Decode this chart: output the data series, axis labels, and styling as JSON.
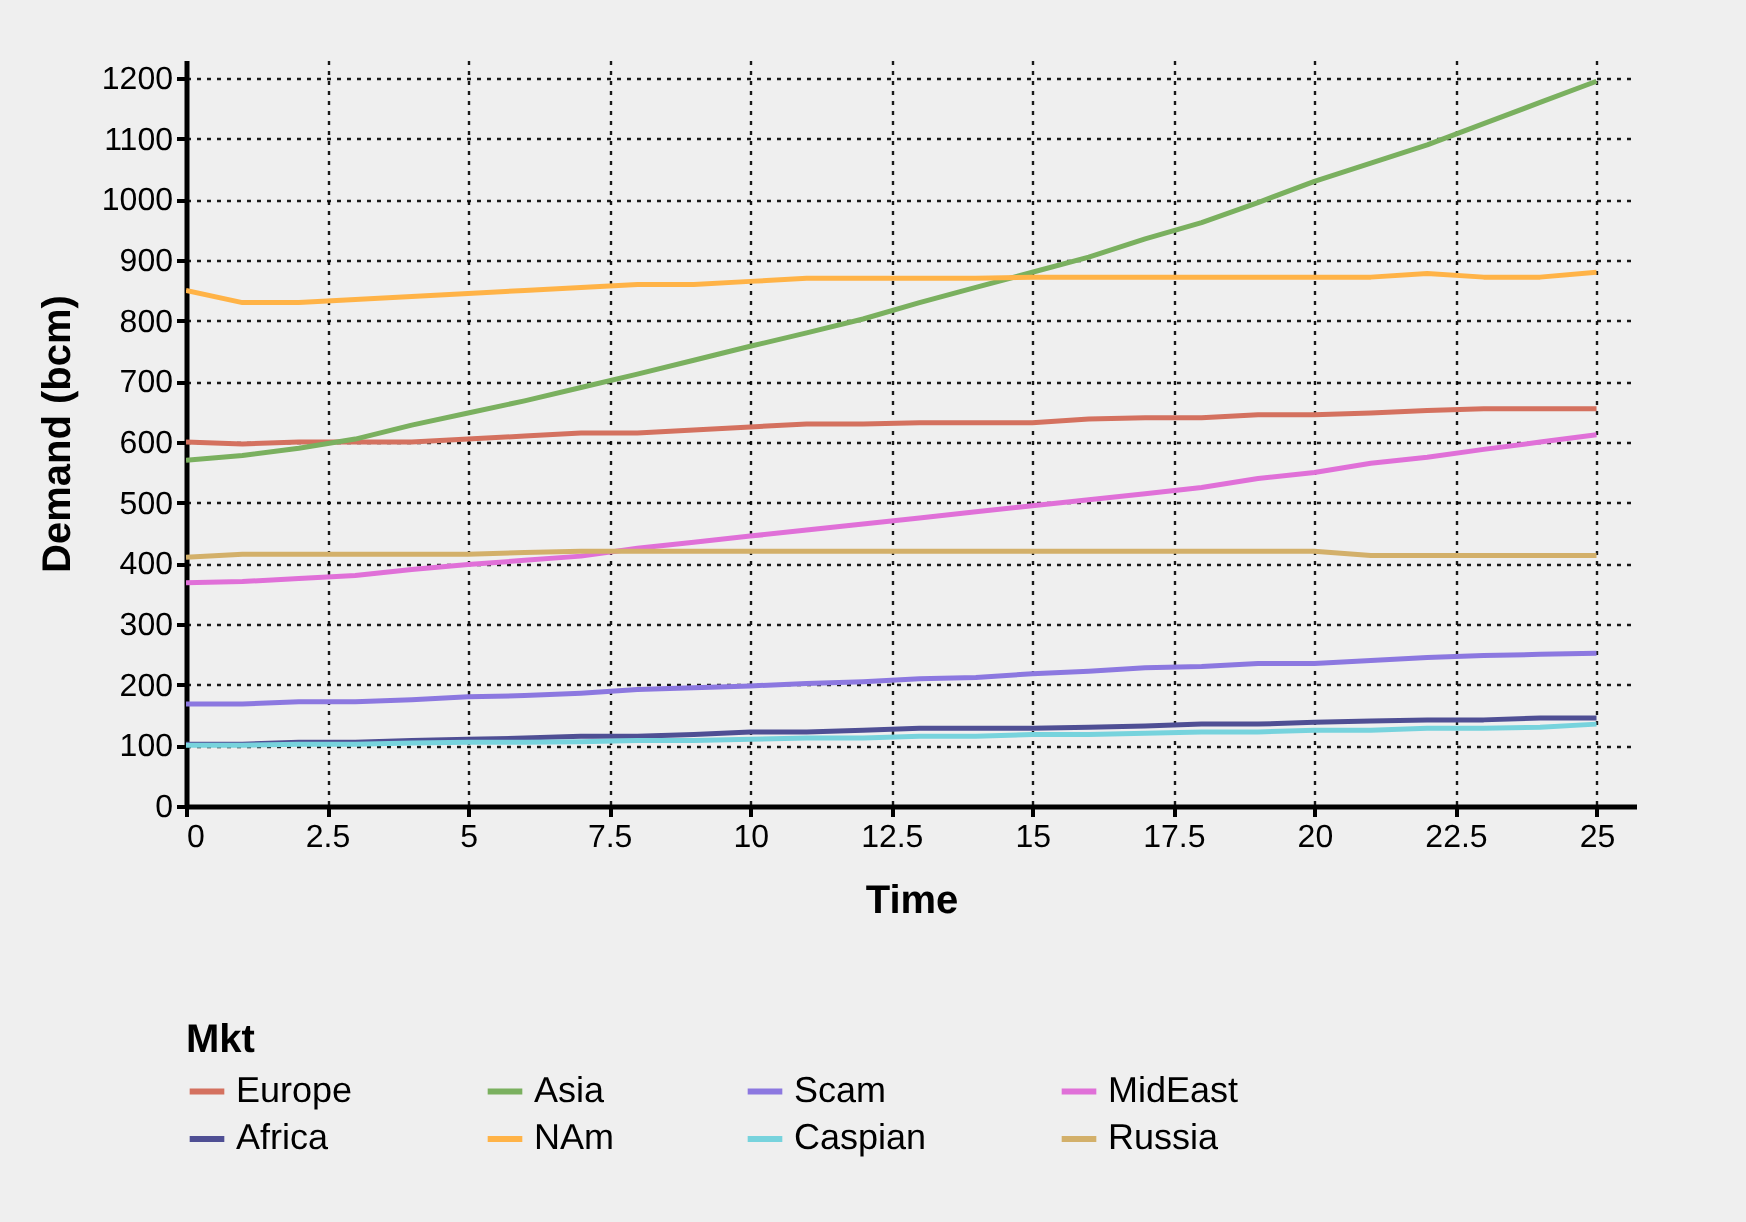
{
  "chart_data": {
    "type": "line",
    "xlabel": "Time",
    "ylabel": "Demand (bcm)",
    "legend_title": "Mkt",
    "legend": "bottom",
    "grid": true,
    "line_style": "solid",
    "x": [
      0,
      1,
      2,
      3,
      4,
      5,
      6,
      7,
      8,
      9,
      10,
      11,
      12,
      13,
      14,
      15,
      16,
      17,
      18,
      19,
      20,
      21,
      22,
      23,
      24,
      25
    ],
    "xlim": [
      0,
      25.7
    ],
    "xticks": [
      0,
      2.5,
      5,
      7.5,
      10,
      12.5,
      15,
      17.5,
      20,
      22.5,
      25
    ],
    "ylim": [
      0,
      1230
    ],
    "yticks": [
      0,
      100,
      200,
      300,
      400,
      500,
      600,
      700,
      800,
      900,
      1000,
      1100,
      1200
    ],
    "series": [
      {
        "name": "Europe",
        "color": "#d4715f",
        "values": [
          600,
          597,
          600,
          600,
          600,
          605,
          610,
          615,
          615,
          620,
          625,
          630,
          630,
          632,
          632,
          632,
          638,
          640,
          640,
          645,
          645,
          648,
          652,
          655,
          655,
          655
        ]
      },
      {
        "name": "Asia",
        "color": "#7ab05f",
        "values": [
          570,
          578,
          590,
          605,
          628,
          648,
          668,
          690,
          712,
          735,
          758,
          780,
          803,
          830,
          855,
          880,
          905,
          935,
          962,
          995,
          1030,
          1060,
          1090,
          1125,
          1160,
          1195
        ]
      },
      {
        "name": "Scam",
        "color": "#8c78e0",
        "values": [
          168,
          168,
          172,
          172,
          175,
          180,
          182,
          186,
          192,
          195,
          198,
          202,
          205,
          210,
          212,
          218,
          222,
          228,
          230,
          235,
          235,
          240,
          245,
          248,
          250,
          252
        ]
      },
      {
        "name": "MidEast",
        "color": "#e070d8",
        "values": [
          368,
          370,
          375,
          380,
          390,
          398,
          405,
          412,
          425,
          435,
          445,
          455,
          465,
          475,
          485,
          495,
          505,
          515,
          525,
          540,
          550,
          565,
          575,
          588,
          600,
          612
        ]
      },
      {
        "name": "Africa",
        "color": "#4f4f94",
        "values": [
          102,
          102,
          105,
          105,
          108,
          110,
          112,
          115,
          115,
          118,
          122,
          122,
          125,
          128,
          128,
          128,
          130,
          132,
          135,
          135,
          138,
          140,
          142,
          142,
          145,
          145
        ]
      },
      {
        "name": "NAm",
        "color": "#ffb347",
        "values": [
          850,
          830,
          830,
          835,
          840,
          845,
          850,
          855,
          860,
          860,
          865,
          870,
          870,
          870,
          870,
          872,
          872,
          872,
          872,
          872,
          872,
          872,
          878,
          872,
          872,
          880
        ]
      },
      {
        "name": "Caspian",
        "color": "#77d3dd",
        "values": [
          100,
          100,
          102,
          102,
          104,
          105,
          105,
          106,
          108,
          108,
          110,
          112,
          112,
          115,
          115,
          118,
          118,
          120,
          122,
          122,
          125,
          125,
          128,
          128,
          130,
          135
        ]
      },
      {
        "name": "Russia",
        "color": "#d3b06a",
        "values": [
          410,
          415,
          415,
          415,
          415,
          415,
          418,
          420,
          420,
          420,
          420,
          420,
          420,
          420,
          420,
          420,
          420,
          420,
          420,
          420,
          420,
          413,
          413,
          413,
          413,
          413
        ]
      }
    ]
  }
}
